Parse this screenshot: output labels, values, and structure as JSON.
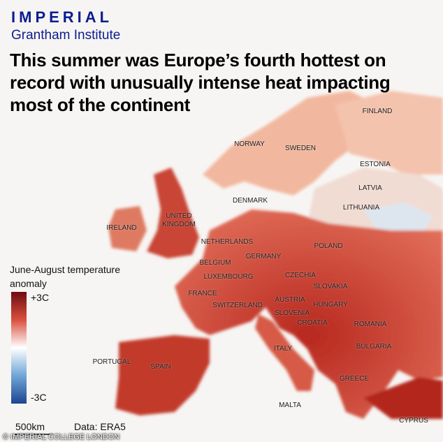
{
  "header": {
    "brand": "IMPERIAL",
    "institute": "Grantham Institute",
    "title": "This summer was Europe’s fourth hottest on record with unusually intense heat impacting most of the continent"
  },
  "legend": {
    "title": "June-August temperature anomaly",
    "max_label": "+3C",
    "min_label": "-3C"
  },
  "scale": "500km",
  "source": "Data: ERA5",
  "credit": "© IMPERIAL COLLEGE LONDON",
  "countries": [
    "FINLAND",
    "NORWAY",
    "SWEDEN",
    "ESTONIA",
    "LATVIA",
    "DENMARK",
    "LITHUANIA",
    "UNITED KINGDOM",
    "IRELAND",
    "NETHERLANDS",
    "POLAND",
    "GERMANY",
    "BELGIUM",
    "LUXEMBOURG",
    "CZECHIA",
    "SLOVAKIA",
    "FRANCE",
    "AUSTRIA",
    "SWITZERLAND",
    "HUNGARY",
    "SLOVENIA",
    "CROATIA",
    "ROMANIA",
    "PORTUGAL",
    "SPAIN",
    "ITALY",
    "BULGARIA",
    "GREECE",
    "MALTA",
    "CYPRUS"
  ]
}
